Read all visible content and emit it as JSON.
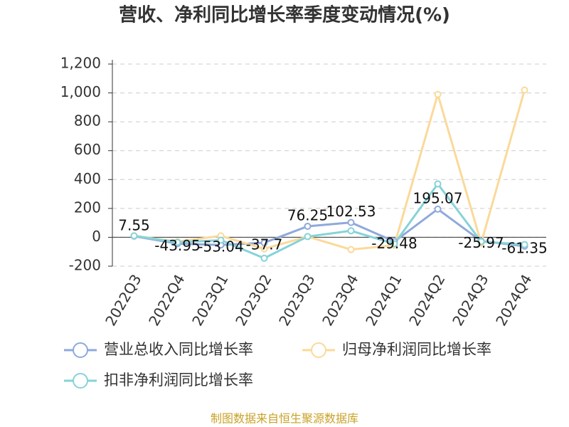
{
  "chart_data": {
    "type": "line",
    "title": "营收、净利同比增长率季度变动情况(%)",
    "categories": [
      "2022Q3",
      "2022Q4",
      "2023Q1",
      "2023Q2",
      "2023Q3",
      "2023Q4",
      "2024Q1",
      "2024Q2",
      "2024Q3",
      "2024Q4"
    ],
    "series": [
      {
        "name": "营业总收入同比增长率",
        "color": "#8fa9dc",
        "values": [
          7.55,
          -43.95,
          -53.04,
          -37.7,
          76.25,
          102.53,
          -29.48,
          195.07,
          -25.97,
          -61.35
        ]
      },
      {
        "name": "归母净利润同比增长率",
        "color": "#fbd99a",
        "values": [
          10,
          -30,
          10,
          -80,
          5,
          -85,
          -55,
          990,
          -40,
          1020
        ]
      },
      {
        "name": "扣非净利润同比增长率",
        "color": "#86d3d8",
        "values": [
          10,
          -35,
          -20,
          -145,
          5,
          45,
          -45,
          370,
          -30,
          -50
        ]
      }
    ],
    "ylim": [
      -200,
      1200
    ],
    "yticks": [
      -200,
      0,
      200,
      400,
      600,
      800,
      {
        "value": 1000,
        "label": "1,000"
      },
      {
        "value": 1200,
        "label": "1,200"
      }
    ],
    "grid": true,
    "source": "制图数据来自恒生聚源数据库"
  }
}
